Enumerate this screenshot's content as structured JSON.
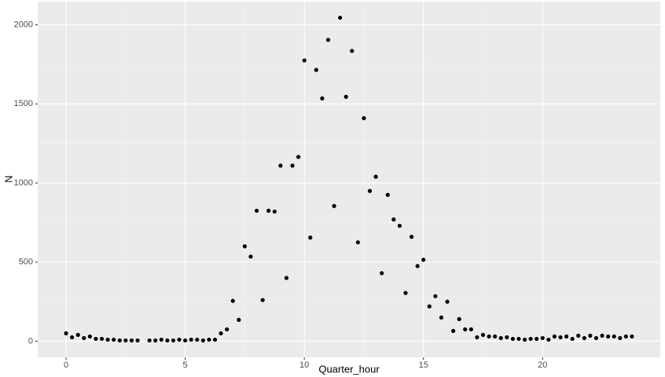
{
  "chart_data": {
    "type": "scatter",
    "x_label": "Quarter_hour",
    "y_label": "N",
    "color": "#000000",
    "x": [
      0,
      0.25,
      0.5,
      0.75,
      1,
      1.25,
      1.5,
      1.75,
      2,
      2.25,
      2.5,
      2.75,
      3,
      3.5,
      3.75,
      4,
      4.25,
      4.5,
      4.75,
      5,
      5.25,
      5.5,
      5.75,
      6,
      6.25,
      6.5,
      6.75,
      7,
      7.25,
      7.5,
      7.75,
      8,
      8.25,
      8.5,
      8.75,
      9,
      9.25,
      9.5,
      9.75,
      10,
      10.25,
      10.5,
      10.75,
      11,
      11.25,
      11.5,
      11.75,
      12,
      12.25,
      12.5,
      12.75,
      13,
      13.25,
      13.5,
      13.75,
      14,
      14.25,
      14.5,
      14.75,
      15,
      15.25,
      15.5,
      15.75,
      16,
      16.25,
      16.5,
      16.75,
      17,
      17.25,
      17.5,
      17.75,
      18,
      18.25,
      18.5,
      18.75,
      19,
      19.25,
      19.5,
      19.75,
      20,
      20.25,
      20.5,
      20.75,
      21,
      21.25,
      21.5,
      21.75,
      22,
      22.25,
      22.5,
      22.75,
      23,
      23.25,
      23.5,
      23.75
    ],
    "values": [
      50,
      25,
      40,
      20,
      30,
      15,
      15,
      10,
      10,
      5,
      5,
      5,
      5,
      5,
      5,
      10,
      5,
      5,
      10,
      5,
      10,
      10,
      5,
      10,
      10,
      50,
      75,
      255,
      135,
      600,
      535,
      825,
      260,
      825,
      820,
      1110,
      400,
      1110,
      1165,
      1775,
      655,
      1715,
      1535,
      1905,
      855,
      2045,
      1545,
      1835,
      625,
      1410,
      950,
      1040,
      430,
      925,
      770,
      730,
      305,
      660,
      475,
      515,
      220,
      285,
      150,
      250,
      65,
      140,
      75,
      75,
      25,
      40,
      30,
      30,
      20,
      25,
      15,
      15,
      10,
      15,
      15,
      20,
      10,
      30,
      25,
      30,
      15,
      35,
      20,
      35,
      20,
      35,
      30,
      30,
      20,
      30,
      30
    ],
    "xlim": [
      -1.19,
      24.94
    ],
    "ylim": [
      -102,
      2147
    ],
    "xticks": [
      0,
      5,
      10,
      15,
      20
    ],
    "yticks": [
      0,
      500,
      1000,
      1500,
      2000
    ],
    "grid": true
  }
}
